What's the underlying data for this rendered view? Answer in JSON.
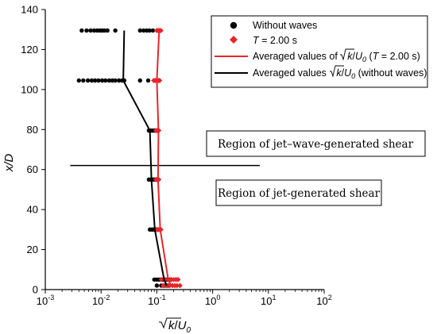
{
  "chart_data": {
    "type": "scatter",
    "xlabel": "√k/U0",
    "ylabel": "x/D",
    "xscale": "log",
    "xlim": [
      0.001,
      100
    ],
    "ylim": [
      0,
      140
    ],
    "x_ticks": [
      {
        "base": "10",
        "exp": "-3",
        "value": 0.001
      },
      {
        "base": "10",
        "exp": "-2",
        "value": 0.01
      },
      {
        "base": "10",
        "exp": "-1",
        "value": 0.1
      },
      {
        "base": "10",
        "exp": "0",
        "value": 1
      },
      {
        "base": "10",
        "exp": "1",
        "value": 10
      },
      {
        "base": "10",
        "exp": "2",
        "value": 100
      }
    ],
    "y_ticks": [
      "0",
      "20",
      "40",
      "60",
      "80",
      "100",
      "120",
      "140"
    ],
    "grid": false,
    "legend_position": "top-right",
    "legend": {
      "without_waves": "Without waves",
      "t_label": "T",
      "t_value": " = 2.00 s",
      "avg_t_prefix": "Averaged values of ",
      "avg_t_var": "k",
      "avg_t_slash": "/",
      "avg_t_u": "U",
      "avg_t_sub": "0",
      "avg_t_open": " (",
      "avg_t_t": "T",
      "avg_t_close": " = 2.00 s)",
      "avg_w_prefix": "Averaged values ",
      "avg_w_var": "k",
      "avg_w_slash": "/",
      "avg_w_u": "U",
      "avg_w_sub": "0",
      "avg_w_suffix": " (without waves)"
    },
    "annotations": {
      "region_upper": "Region of jet–wave-generated shear",
      "region_lower": "Region of jet-generated shear",
      "divider_y": 62,
      "divider_x": [
        0.0028,
        7
      ]
    },
    "series": [
      {
        "name": "Without waves",
        "kind": "points",
        "color": "#000000",
        "points": [
          [
            0.0045,
            129.5
          ],
          [
            0.0055,
            129.5
          ],
          [
            0.0065,
            129.5
          ],
          [
            0.0075,
            129.5
          ],
          [
            0.0085,
            129.5
          ],
          [
            0.0095,
            129.5
          ],
          [
            0.0105,
            129.5
          ],
          [
            0.0115,
            129.5
          ],
          [
            0.013,
            129.5
          ],
          [
            0.018,
            129.5
          ],
          [
            0.05,
            129.5
          ],
          [
            0.058,
            129.5
          ],
          [
            0.066,
            129.5
          ],
          [
            0.074,
            129.5
          ],
          [
            0.085,
            129.5
          ],
          [
            0.004,
            104.5
          ],
          [
            0.0048,
            104.5
          ],
          [
            0.0058,
            104.5
          ],
          [
            0.0068,
            104.5
          ],
          [
            0.0078,
            104.5
          ],
          [
            0.009,
            104.5
          ],
          [
            0.0105,
            104.5
          ],
          [
            0.012,
            104.5
          ],
          [
            0.014,
            104.5
          ],
          [
            0.016,
            104.5
          ],
          [
            0.018,
            104.5
          ],
          [
            0.021,
            104.5
          ],
          [
            0.024,
            104.5
          ],
          [
            0.026,
            104.5
          ],
          [
            0.05,
            104.5
          ],
          [
            0.07,
            104.5
          ],
          [
            0.072,
            79.5
          ],
          [
            0.078,
            79.5
          ],
          [
            0.084,
            79.5
          ],
          [
            0.09,
            79.5
          ],
          [
            0.096,
            79.5
          ],
          [
            0.072,
            55
          ],
          [
            0.078,
            55
          ],
          [
            0.084,
            55
          ],
          [
            0.09,
            55
          ],
          [
            0.075,
            30
          ],
          [
            0.081,
            30
          ],
          [
            0.087,
            30
          ],
          [
            0.093,
            30
          ],
          [
            0.099,
            30
          ],
          [
            0.09,
            5
          ],
          [
            0.1,
            5
          ],
          [
            0.11,
            5
          ],
          [
            0.12,
            5
          ],
          [
            0.13,
            5
          ],
          [
            0.14,
            5
          ],
          [
            0.15,
            5
          ],
          [
            0.16,
            5
          ],
          [
            0.17,
            5
          ],
          [
            0.18,
            5
          ],
          [
            0.1,
            2
          ],
          [
            0.12,
            2
          ],
          [
            0.14,
            2
          ],
          [
            0.16,
            2
          ]
        ]
      },
      {
        "name": "T = 2.00 s",
        "kind": "points",
        "color": "#e8262a",
        "points": [
          [
            0.1,
            129.5
          ],
          [
            0.106,
            129.5
          ],
          [
            0.112,
            129.5
          ],
          [
            0.118,
            129.5
          ],
          [
            0.088,
            104.5
          ],
          [
            0.094,
            104.5
          ],
          [
            0.1,
            104.5
          ],
          [
            0.106,
            104.5
          ],
          [
            0.112,
            104.5
          ],
          [
            0.096,
            79.5
          ],
          [
            0.102,
            79.5
          ],
          [
            0.108,
            79.5
          ],
          [
            0.096,
            55
          ],
          [
            0.102,
            55
          ],
          [
            0.108,
            55
          ],
          [
            0.1,
            30
          ],
          [
            0.106,
            30
          ],
          [
            0.112,
            30
          ],
          [
            0.118,
            30
          ],
          [
            0.12,
            5
          ],
          [
            0.14,
            5
          ],
          [
            0.16,
            5
          ],
          [
            0.18,
            5
          ],
          [
            0.2,
            5
          ],
          [
            0.22,
            5
          ],
          [
            0.24,
            5
          ],
          [
            0.13,
            2
          ],
          [
            0.15,
            2
          ],
          [
            0.17,
            2
          ],
          [
            0.19,
            2
          ],
          [
            0.21,
            2
          ],
          [
            0.23,
            2
          ],
          [
            0.26,
            2
          ]
        ]
      },
      {
        "name": "Averaged values of √k/U0 (T = 2.00 s)",
        "kind": "line",
        "color": "#e8262a",
        "points": [
          [
            0.18,
            2
          ],
          [
            0.16,
            5
          ],
          [
            0.115,
            30
          ],
          [
            0.105,
            55
          ],
          [
            0.107,
            79.5
          ],
          [
            0.1,
            104.5
          ],
          [
            0.11,
            129.5
          ]
        ]
      },
      {
        "name": "Averaged values √k/U0 (without waves)",
        "kind": "line",
        "color": "#000000",
        "points": [
          [
            0.15,
            2
          ],
          [
            0.135,
            5
          ],
          [
            0.092,
            30
          ],
          [
            0.08,
            55
          ],
          [
            0.075,
            79.5
          ],
          [
            0.025,
            104.5
          ],
          [
            0.026,
            129.5
          ]
        ]
      }
    ]
  }
}
